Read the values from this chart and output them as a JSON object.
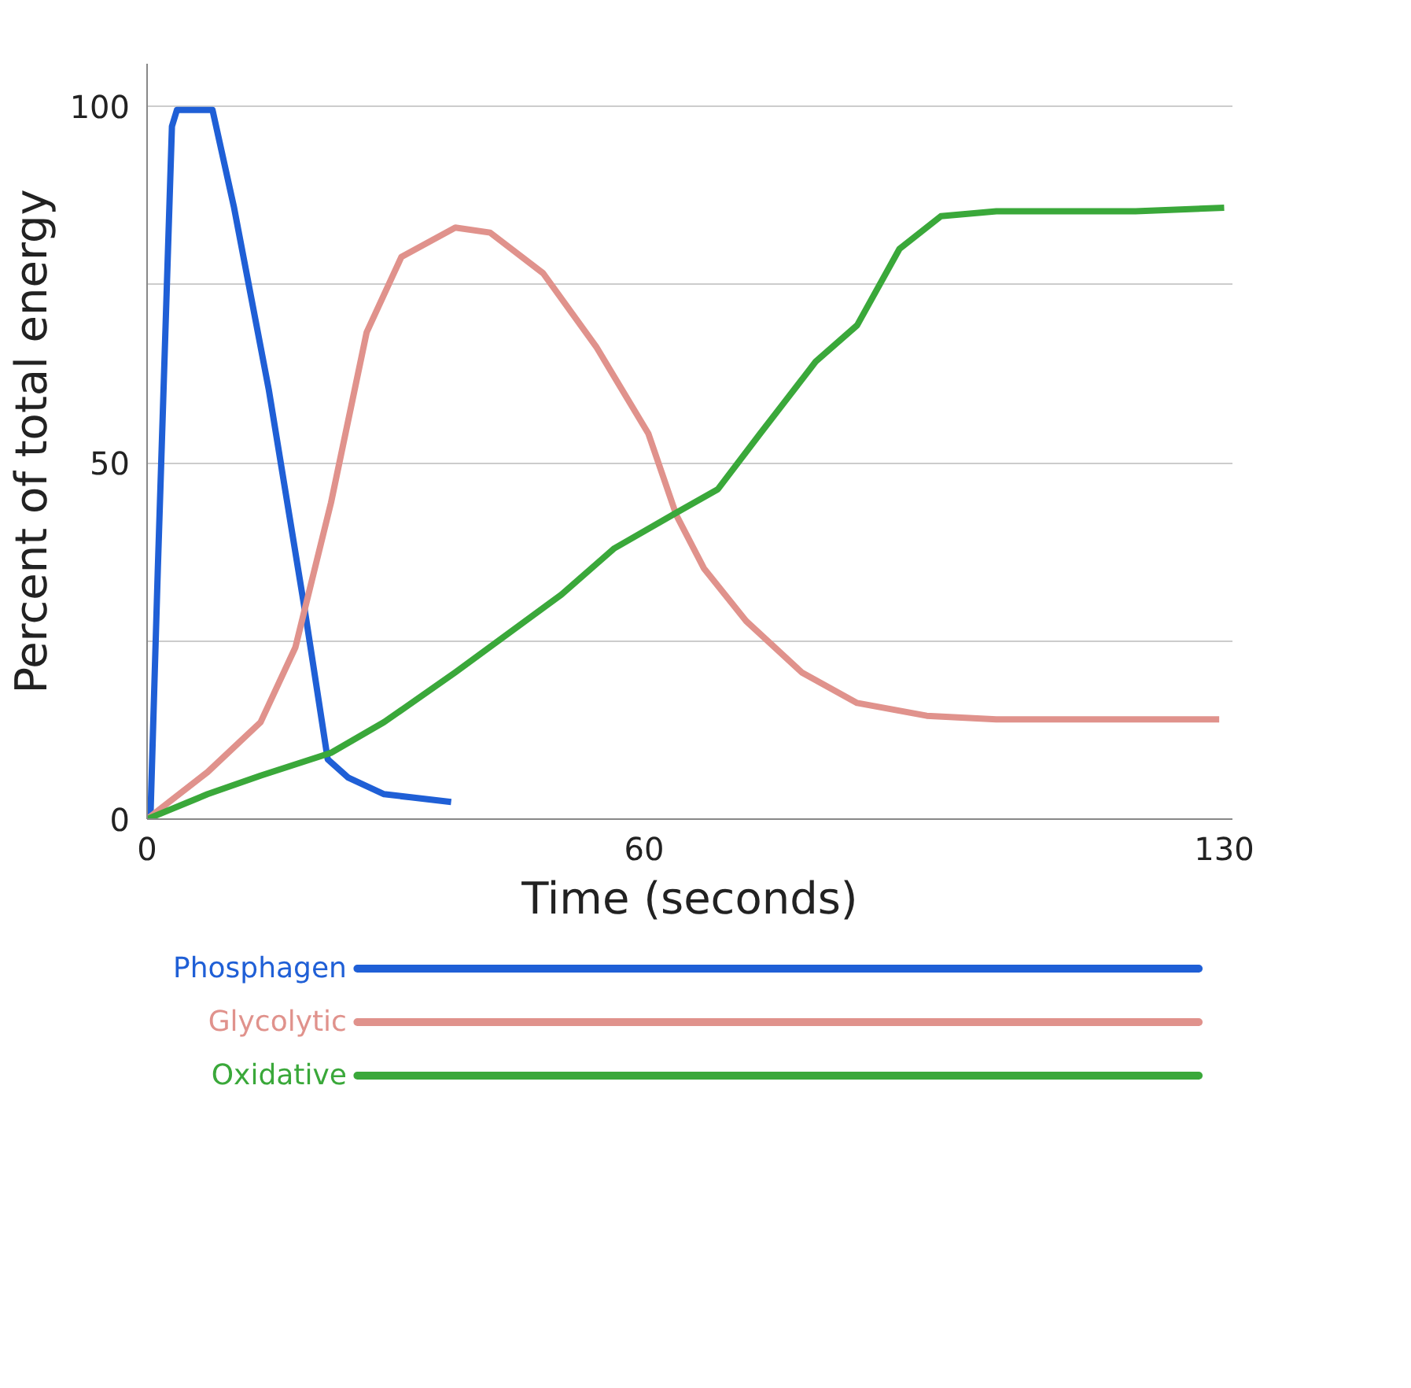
{
  "chart_data": {
    "type": "line",
    "xlabel": "Time (seconds)",
    "ylabel": "Percent of total energy",
    "xlim": [
      0,
      131
    ],
    "ylim": [
      0,
      106
    ],
    "xticks": [
      0,
      60,
      130
    ],
    "yticks": [
      0,
      {
        "value": 25,
        "label": null
      },
      50,
      {
        "value": 75,
        "label": null
      },
      100
    ],
    "grid": "y",
    "legend": "bottom",
    "line_style": "solid",
    "series": [
      {
        "name": "Phosphagen",
        "color": "#1f5fd6",
        "x": [
          0,
          0.4,
          1.3,
          3,
          3.6,
          7.9,
          10.5,
          14.7,
          19,
          21.8,
          24.3,
          28.6,
          36.7
        ],
        "values": [
          0,
          0,
          35.2,
          97.2,
          99.5,
          99.5,
          85.8,
          60.2,
          29.6,
          8.4,
          5.8,
          3.5,
          2.4
        ]
      },
      {
        "name": "Glycolytic",
        "color": "#e0928c",
        "x": [
          0,
          7.3,
          13.7,
          17.9,
          22.2,
          26.5,
          30.7,
          37.2,
          41.4,
          47.8,
          54.2,
          60.5,
          63.9,
          67.2,
          72.3,
          79,
          85.7,
          94.1,
          102.5,
          112.6,
          129.4
        ],
        "values": [
          0,
          6.6,
          13.6,
          24.1,
          44.4,
          68.3,
          78.9,
          83.0,
          82.3,
          76.6,
          66.3,
          54.1,
          42.6,
          35.2,
          27.8,
          20.6,
          16.3,
          14.5,
          14.0,
          14.0,
          14.0
        ]
      },
      {
        "name": "Oxidative",
        "color": "#3aa83a",
        "x": [
          0,
          7.3,
          13.7,
          22.2,
          28.6,
          37.2,
          50,
          56.4,
          63.9,
          68.9,
          74,
          80.7,
          85.7,
          90.8,
          95.8,
          102.5,
          119.3,
          130
        ],
        "values": [
          0,
          3.5,
          6.1,
          9.3,
          13.6,
          20.6,
          31.5,
          38,
          43,
          46.3,
          54.1,
          64.2,
          69.3,
          80,
          84.6,
          85.3,
          85.3,
          85.8
        ]
      }
    ]
  }
}
